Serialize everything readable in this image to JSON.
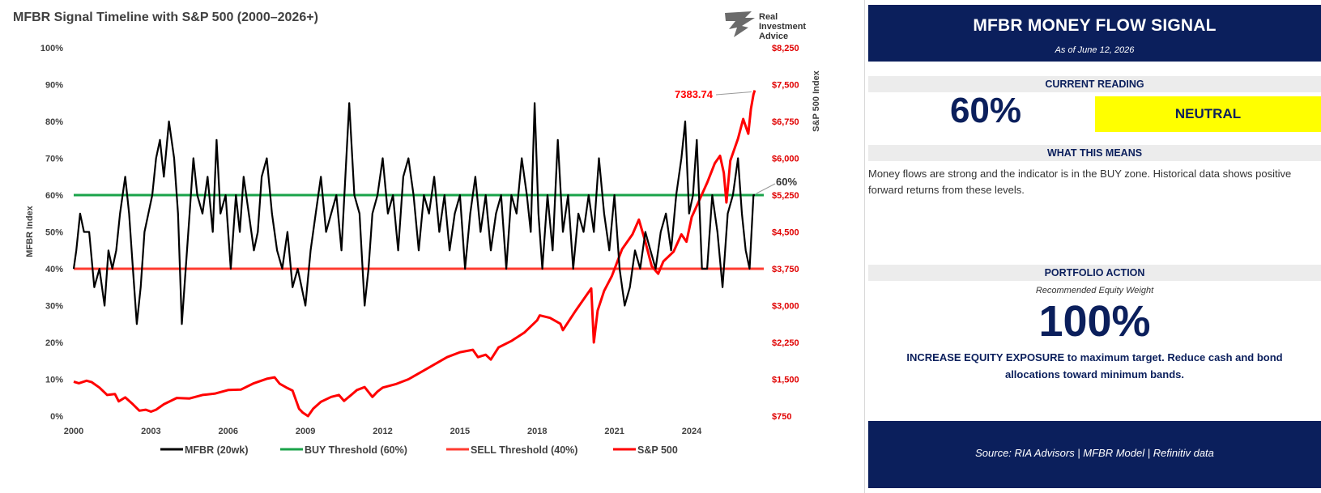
{
  "panel": {
    "title": "MFBR MONEY FLOW SIGNAL",
    "as_of": "As of June 12, 2026",
    "current_reading_label": "CURRENT READING",
    "current_reading_value": "60%",
    "status": "NEUTRAL",
    "meaning_label": "WHAT THIS MEANS",
    "meaning_text": "Money flows are strong and the indicator is in the BUY zone. Historical data shows positive forward returns from these levels.",
    "action_label": "PORTFOLIO ACTION",
    "recommended_label": "Recommended Equity Weight",
    "equity_weight": "100%",
    "action_text": "INCREASE EQUITY EXPOSURE to maximum target. Reduce cash and bond allocations toward minimum bands.",
    "source": "Source: RIA Advisors | MFBR Model | Refinitiv data",
    "colors": {
      "navy": "#0b1f5c",
      "neutral": "#ffff00"
    }
  },
  "logo": {
    "line1": "Real",
    "line2": "Investment",
    "line3": "Advice"
  },
  "chart_data": {
    "type": "line",
    "title": "MFBR Signal Timeline with S&P 500 (2000–2026+)",
    "ylabel": "MFBR Index",
    "y2label": "S&P 500 Index",
    "ylim": [
      0,
      100
    ],
    "y2lim": [
      750,
      8250
    ],
    "xlim": [
      2000,
      2026.8
    ],
    "x_ticks": [
      "2000",
      "2003",
      "2006",
      "2009",
      "2012",
      "2015",
      "2018",
      "2021",
      "2024"
    ],
    "y_ticks": [
      "0%",
      "10%",
      "20%",
      "30%",
      "40%",
      "50%",
      "60%",
      "70%",
      "80%",
      "90%",
      "100%"
    ],
    "y2_ticks": [
      "$750",
      "$1,500",
      "$2,250",
      "$3,000",
      "$3,750",
      "$4,500",
      "$5,250",
      "$6,000",
      "$6,750",
      "$7,500",
      "$8,250"
    ],
    "grid": false,
    "legend_position": "bottom",
    "colors": {
      "mfbr": "#000000",
      "buy": "#1aa34a",
      "sell": "#ff3b30",
      "spx": "#ff0000",
      "right_axis": "#e00000"
    },
    "series": [
      {
        "name": "MFBR (20wk)",
        "x": [
          2000.0,
          2000.1,
          2000.25,
          2000.4,
          2000.6,
          2000.8,
          2001.0,
          2001.2,
          2001.35,
          2001.5,
          2001.65,
          2001.8,
          2002.0,
          2002.15,
          2002.3,
          2002.45,
          2002.6,
          2002.75,
          2002.9,
          2003.05,
          2003.2,
          2003.35,
          2003.5,
          2003.7,
          2003.9,
          2004.05,
          2004.2,
          2004.35,
          2004.5,
          2004.65,
          2004.8,
          2005.0,
          2005.2,
          2005.4,
          2005.55,
          2005.7,
          2005.9,
          2006.1,
          2006.3,
          2006.45,
          2006.6,
          2006.8,
          2007.0,
          2007.15,
          2007.3,
          2007.5,
          2007.7,
          2007.9,
          2008.1,
          2008.3,
          2008.5,
          2008.7,
          2008.85,
          2009.0,
          2009.2,
          2009.4,
          2009.6,
          2009.8,
          2010.0,
          2010.2,
          2010.4,
          2010.55,
          2010.7,
          2010.9,
          2011.1,
          2011.3,
          2011.45,
          2011.6,
          2011.8,
          2012.0,
          2012.2,
          2012.4,
          2012.6,
          2012.8,
          2013.0,
          2013.2,
          2013.4,
          2013.6,
          2013.8,
          2014.0,
          2014.2,
          2014.4,
          2014.6,
          2014.8,
          2015.0,
          2015.2,
          2015.4,
          2015.6,
          2015.8,
          2016.0,
          2016.2,
          2016.4,
          2016.6,
          2016.8,
          2017.0,
          2017.2,
          2017.4,
          2017.6,
          2017.75,
          2017.9,
          2018.05,
          2018.2,
          2018.4,
          2018.6,
          2018.8,
          2019.0,
          2019.2,
          2019.4,
          2019.6,
          2019.8,
          2020.0,
          2020.2,
          2020.4,
          2020.6,
          2020.8,
          2021.0,
          2021.2,
          2021.4,
          2021.6,
          2021.8,
          2022.0,
          2022.2,
          2022.4,
          2022.6,
          2022.8,
          2023.0,
          2023.2,
          2023.4,
          2023.6,
          2023.75,
          2023.9,
          2024.05,
          2024.2,
          2024.4,
          2024.6,
          2024.8,
          2025.0,
          2025.2,
          2025.4,
          2025.6,
          2025.8,
          2025.95,
          2026.1,
          2026.25,
          2026.4,
          2026.45
        ],
        "values": [
          40,
          45,
          55,
          50,
          50,
          35,
          40,
          30,
          45,
          40,
          45,
          55,
          65,
          55,
          40,
          25,
          35,
          50,
          55,
          60,
          70,
          75,
          65,
          80,
          70,
          55,
          25,
          40,
          55,
          70,
          60,
          55,
          65,
          50,
          75,
          55,
          60,
          40,
          60,
          50,
          65,
          55,
          45,
          50,
          65,
          70,
          55,
          45,
          40,
          50,
          35,
          40,
          35,
          30,
          45,
          55,
          65,
          50,
          55,
          60,
          45,
          65,
          85,
          60,
          55,
          30,
          40,
          55,
          60,
          70,
          55,
          60,
          45,
          65,
          70,
          60,
          45,
          60,
          55,
          65,
          50,
          60,
          45,
          55,
          60,
          40,
          55,
          65,
          50,
          60,
          45,
          55,
          60,
          40,
          60,
          55,
          70,
          60,
          50,
          85,
          55,
          40,
          60,
          45,
          75,
          50,
          60,
          40,
          55,
          50,
          60,
          50,
          70,
          55,
          45,
          60,
          40,
          30,
          35,
          45,
          40,
          50,
          45,
          40,
          50,
          55,
          45,
          60,
          70,
          80,
          55,
          60,
          75,
          40,
          40,
          60,
          50,
          35,
          55,
          60,
          70,
          55,
          45,
          40,
          60,
          60
        ]
      },
      {
        "name": "BUY Threshold (60%)",
        "value": 60
      },
      {
        "name": "SELL Threshold (40%)",
        "value": 40
      },
      {
        "name": "S&P 500",
        "x": [
          2000.0,
          2000.2,
          2000.5,
          2000.7,
          2001.0,
          2001.3,
          2001.6,
          2001.75,
          2002.0,
          2002.3,
          2002.55,
          2002.8,
          2003.0,
          2003.2,
          2003.5,
          2004.0,
          2004.5,
          2005.0,
          2005.5,
          2006.0,
          2006.5,
          2007.0,
          2007.5,
          2007.8,
          2008.0,
          2008.3,
          2008.5,
          2008.75,
          2008.9,
          2009.1,
          2009.3,
          2009.6,
          2010.0,
          2010.3,
          2010.5,
          2010.8,
          2011.0,
          2011.3,
          2011.6,
          2011.8,
          2012.0,
          2012.5,
          2013.0,
          2013.5,
          2014.0,
          2014.5,
          2015.0,
          2015.5,
          2015.7,
          2016.0,
          2016.2,
          2016.5,
          2017.0,
          2017.5,
          2018.0,
          2018.1,
          2018.5,
          2018.9,
          2019.0,
          2019.5,
          2019.9,
          2020.1,
          2020.2,
          2020.35,
          2020.6,
          2020.9,
          2021.3,
          2021.7,
          2021.95,
          2022.2,
          2022.45,
          2022.7,
          2022.9,
          2023.3,
          2023.6,
          2023.8,
          2024.0,
          2024.3,
          2024.6,
          2024.9,
          2025.1,
          2025.25,
          2025.35,
          2025.5,
          2025.8,
          2026.0,
          2026.2,
          2026.3,
          2026.4,
          2026.45
        ],
        "values": [
          1450,
          1420,
          1470,
          1440,
          1330,
          1180,
          1200,
          1050,
          1130,
          990,
          860,
          880,
          840,
          880,
          990,
          1120,
          1110,
          1180,
          1210,
          1280,
          1290,
          1420,
          1510,
          1540,
          1410,
          1320,
          1270,
          900,
          820,
          750,
          900,
          1040,
          1140,
          1180,
          1060,
          1190,
          1280,
          1340,
          1140,
          1250,
          1330,
          1400,
          1500,
          1650,
          1800,
          1950,
          2050,
          2100,
          1950,
          2000,
          1900,
          2150,
          2280,
          2450,
          2700,
          2800,
          2750,
          2630,
          2500,
          2900,
          3200,
          3350,
          2250,
          2900,
          3300,
          3600,
          4150,
          4450,
          4750,
          4300,
          3800,
          3650,
          3900,
          4100,
          4450,
          4300,
          4800,
          5150,
          5500,
          5900,
          6050,
          5700,
          5100,
          5950,
          6400,
          6800,
          6500,
          7000,
          7300,
          7383.74
        ]
      }
    ],
    "annotations": [
      {
        "text": "7383.74",
        "series": "S&P 500",
        "x": 2026.45,
        "y": 7383.74
      },
      {
        "text": "60%",
        "series": "MFBR (20wk)",
        "x": 2026.45,
        "y": 60
      }
    ]
  }
}
